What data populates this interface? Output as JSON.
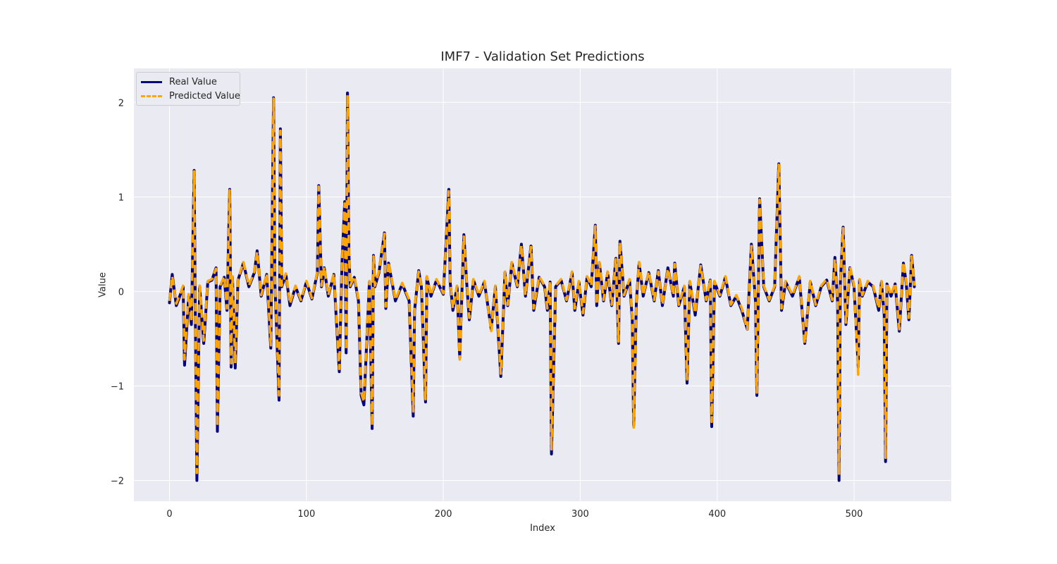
{
  "chart_data": {
    "type": "line",
    "title": "IMF7 - Validation Set Predictions",
    "xlabel": "Index",
    "ylabel": "Value",
    "xlim": [
      -26,
      571
    ],
    "ylim": [
      -2.22,
      2.36
    ],
    "xticks": [
      0,
      100,
      200,
      300,
      400,
      500
    ],
    "yticks": [
      -2,
      -1,
      0,
      1,
      2
    ],
    "ytick_labels": [
      "−2",
      "−1",
      "0",
      "1",
      "2"
    ],
    "grid": true,
    "legend_position": "top-left",
    "series": [
      {
        "name": "Real Value",
        "color": "#000080",
        "style": "solid",
        "x": [
          0,
          2,
          5,
          10,
          11,
          14,
          16,
          18,
          19,
          20,
          22,
          25,
          28,
          31,
          34,
          35,
          37,
          40,
          42,
          44,
          45,
          46,
          48,
          50,
          54,
          58,
          62,
          64,
          67,
          71,
          74,
          76,
          77,
          80,
          81,
          82,
          85,
          88,
          92,
          96,
          100,
          104,
          108,
          109,
          111,
          113,
          116,
          120,
          124,
          126,
          128,
          129,
          130,
          131,
          132,
          135,
          138,
          140,
          142,
          146,
          148,
          149,
          150,
          153,
          157,
          158,
          160,
          165,
          170,
          175,
          178,
          179,
          182,
          184,
          187,
          188,
          191,
          195,
          200,
          204,
          205,
          207,
          210,
          212,
          215,
          217,
          219,
          222,
          226,
          230,
          235,
          238,
          242,
          245,
          247,
          250,
          254,
          257,
          260,
          264,
          266,
          270,
          274,
          276,
          278,
          279,
          282,
          286,
          290,
          294,
          296,
          299,
          302,
          305,
          308,
          311,
          312,
          314,
          317,
          320,
          323,
          326,
          328,
          329,
          332,
          336,
          338,
          339,
          341,
          343,
          346,
          350,
          354,
          357,
          360,
          364,
          368,
          369,
          372,
          376,
          378,
          380,
          384,
          388,
          392,
          395,
          396,
          398,
          402,
          406,
          410,
          414,
          418,
          422,
          425,
          428,
          429,
          431,
          434,
          438,
          442,
          445,
          447,
          450,
          455,
          460,
          464,
          468,
          472,
          476,
          480,
          484,
          486,
          488,
          489,
          490,
          492,
          494,
          497,
          500,
          503,
          504,
          506,
          510,
          514,
          518,
          520,
          522,
          523,
          524,
          527,
          530,
          533,
          536,
          538,
          540,
          542,
          544
        ],
        "y": [
          -0.12,
          0.18,
          -0.15,
          0.05,
          -0.78,
          -0.05,
          -0.35,
          1.28,
          -0.4,
          -2.0,
          0.05,
          -0.55,
          0.1,
          0.12,
          0.25,
          -1.48,
          0.05,
          0.15,
          -0.2,
          1.08,
          -0.8,
          0.15,
          -0.81,
          0.12,
          0.3,
          0.05,
          0.2,
          0.43,
          -0.05,
          0.18,
          -0.6,
          2.05,
          0.1,
          -1.15,
          1.72,
          0.05,
          0.18,
          -0.15,
          0.05,
          -0.1,
          0.1,
          -0.08,
          0.2,
          1.12,
          0.05,
          0.25,
          -0.05,
          0.18,
          -0.85,
          0.3,
          0.95,
          -0.65,
          2.1,
          0.4,
          0.05,
          0.15,
          -0.1,
          -1.1,
          -1.2,
          0.1,
          -1.45,
          0.38,
          0.05,
          0.2,
          0.62,
          -0.18,
          0.3,
          -0.1,
          0.08,
          -0.1,
          -1.32,
          -0.2,
          0.22,
          0.05,
          -1.17,
          0.15,
          -0.05,
          0.12,
          -0.03,
          1.08,
          0.1,
          -0.2,
          0.05,
          -0.7,
          0.6,
          0.1,
          -0.3,
          0.12,
          -0.05,
          0.1,
          -0.4,
          0.05,
          -0.9,
          0.2,
          -0.15,
          0.3,
          0.05,
          0.5,
          -0.05,
          0.48,
          -0.2,
          0.15,
          0.05,
          -0.2,
          0.1,
          -1.72,
          0.05,
          0.12,
          -0.1,
          0.2,
          -0.2,
          0.1,
          -0.25,
          0.15,
          0.05,
          0.7,
          -0.15,
          0.3,
          -0.1,
          0.2,
          -0.15,
          0.35,
          -0.55,
          0.53,
          -0.05,
          0.12,
          -0.3,
          -1.42,
          -0.1,
          0.3,
          -0.05,
          0.2,
          -0.1,
          0.22,
          -0.15,
          0.25,
          -0.05,
          0.3,
          -0.15,
          0.05,
          -0.97,
          0.1,
          -0.25,
          0.28,
          -0.1,
          0.12,
          -1.43,
          0.1,
          -0.05,
          0.15,
          -0.15,
          -0.05,
          -0.2,
          -0.4,
          0.5,
          -0.1,
          -1.1,
          0.98,
          0.05,
          -0.1,
          0.05,
          1.35,
          -0.2,
          0.1,
          -0.05,
          0.15,
          -0.55,
          0.1,
          -0.15,
          0.05,
          0.12,
          -0.1,
          0.36,
          -0.12,
          -2.0,
          0.1,
          0.68,
          -0.35,
          0.25,
          0.05,
          -0.8,
          0.12,
          -0.05,
          0.1,
          0.05,
          -0.2,
          0.1,
          -0.25,
          -1.8,
          0.08,
          -0.05,
          0.08,
          -0.42,
          0.3,
          0.1,
          -0.3,
          0.38,
          0.05
        ]
      },
      {
        "name": "Predicted Value",
        "color": "#FFA500",
        "style": "dashed",
        "x": [
          0,
          2,
          5,
          10,
          11,
          14,
          16,
          18,
          19,
          20,
          22,
          25,
          28,
          31,
          34,
          35,
          37,
          40,
          42,
          44,
          45,
          46,
          48,
          50,
          54,
          58,
          62,
          64,
          67,
          71,
          74,
          76,
          77,
          80,
          81,
          82,
          85,
          88,
          92,
          96,
          100,
          104,
          108,
          109,
          111,
          113,
          116,
          120,
          124,
          126,
          128,
          129,
          130,
          131,
          132,
          135,
          138,
          140,
          142,
          146,
          148,
          149,
          150,
          153,
          157,
          158,
          160,
          165,
          170,
          175,
          178,
          179,
          182,
          184,
          187,
          188,
          191,
          195,
          200,
          204,
          205,
          207,
          210,
          212,
          215,
          217,
          219,
          222,
          226,
          230,
          235,
          238,
          242,
          245,
          247,
          250,
          254,
          257,
          260,
          264,
          266,
          270,
          274,
          276,
          278,
          279,
          282,
          286,
          290,
          294,
          296,
          299,
          302,
          305,
          308,
          311,
          312,
          314,
          317,
          320,
          323,
          326,
          328,
          329,
          332,
          336,
          338,
          339,
          341,
          343,
          346,
          350,
          354,
          357,
          360,
          364,
          368,
          369,
          372,
          376,
          378,
          380,
          384,
          388,
          392,
          395,
          396,
          398,
          402,
          406,
          410,
          414,
          418,
          422,
          425,
          428,
          429,
          431,
          434,
          438,
          442,
          445,
          447,
          450,
          455,
          460,
          464,
          468,
          472,
          476,
          480,
          484,
          486,
          488,
          489,
          490,
          492,
          494,
          497,
          500,
          503,
          504,
          506,
          510,
          514,
          518,
          520,
          522,
          523,
          524,
          527,
          530,
          533,
          536,
          538,
          540,
          542,
          544
        ],
        "y": [
          -0.1,
          0.16,
          -0.13,
          0.06,
          -0.72,
          -0.03,
          -0.32,
          1.27,
          -0.38,
          -1.92,
          0.06,
          -0.52,
          0.11,
          0.13,
          0.24,
          -1.43,
          0.06,
          0.16,
          -0.18,
          1.07,
          -0.76,
          0.16,
          -0.76,
          0.13,
          0.31,
          0.06,
          0.21,
          0.42,
          -0.04,
          0.19,
          -0.57,
          2.04,
          0.11,
          -1.1,
          1.7,
          0.06,
          0.19,
          -0.13,
          0.06,
          -0.09,
          0.11,
          -0.07,
          0.21,
          1.11,
          0.06,
          0.26,
          -0.04,
          0.19,
          -0.82,
          0.31,
          0.93,
          -0.62,
          2.08,
          0.41,
          0.06,
          0.16,
          -0.09,
          -1.07,
          -1.17,
          0.11,
          -1.42,
          0.37,
          0.06,
          0.21,
          0.61,
          -0.16,
          0.31,
          -0.09,
          0.09,
          -0.09,
          -1.27,
          -0.18,
          0.21,
          0.06,
          -1.14,
          0.16,
          -0.04,
          0.13,
          -0.02,
          1.06,
          0.11,
          -0.18,
          0.06,
          -0.72,
          0.58,
          0.11,
          -0.28,
          0.13,
          -0.04,
          0.11,
          -0.42,
          0.06,
          -0.87,
          0.21,
          -0.14,
          0.31,
          0.06,
          0.49,
          -0.04,
          0.47,
          -0.18,
          0.16,
          0.06,
          -0.18,
          0.11,
          -1.67,
          0.06,
          0.13,
          -0.09,
          0.21,
          -0.18,
          0.11,
          -0.23,
          0.16,
          0.06,
          0.69,
          -0.14,
          0.31,
          -0.09,
          0.21,
          -0.14,
          0.34,
          -0.53,
          0.52,
          -0.04,
          0.13,
          -0.28,
          -1.44,
          -0.09,
          0.31,
          -0.04,
          0.21,
          -0.09,
          0.21,
          -0.14,
          0.24,
          -0.04,
          0.29,
          -0.14,
          0.06,
          -0.93,
          0.11,
          -0.23,
          0.27,
          -0.09,
          0.13,
          -1.38,
          0.11,
          -0.04,
          0.16,
          -0.14,
          -0.04,
          -0.18,
          -0.4,
          0.48,
          -0.09,
          -1.07,
          0.97,
          0.06,
          -0.09,
          0.06,
          1.34,
          -0.18,
          0.11,
          -0.04,
          0.16,
          -0.55,
          0.11,
          -0.14,
          0.06,
          0.13,
          -0.09,
          0.34,
          -0.11,
          -1.94,
          0.11,
          0.67,
          -0.33,
          0.26,
          0.06,
          -0.88,
          0.13,
          -0.04,
          0.11,
          0.06,
          -0.18,
          0.11,
          -0.23,
          -1.76,
          0.09,
          -0.04,
          0.09,
          -0.4,
          0.31,
          0.11,
          -0.28,
          0.37,
          0.06
        ]
      }
    ]
  }
}
